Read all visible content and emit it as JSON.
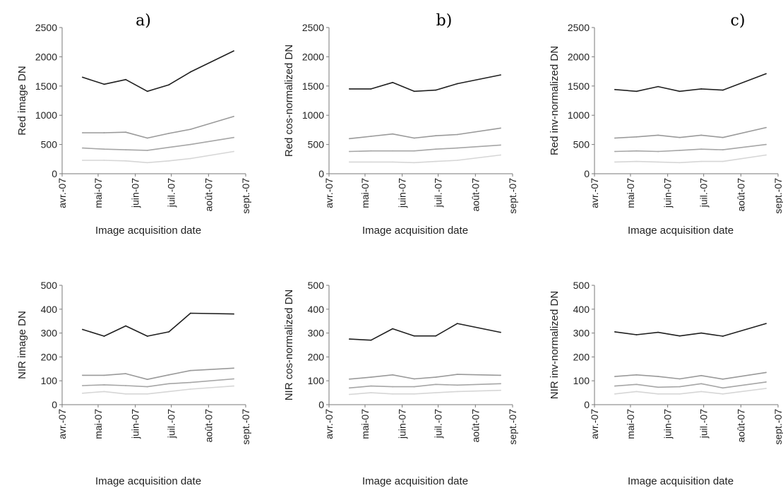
{
  "panel_labels": [
    "a)",
    "b)",
    "c)"
  ],
  "colors": {
    "series": [
      "#1f1f1f",
      "#9a9a9a",
      "#a6a6a6",
      "#d6d6d6"
    ],
    "axis": "#7a7a7a"
  },
  "chart_data": [
    {
      "type": "line",
      "ylabel": "Red image DN",
      "xlabel": "Image acquisition date",
      "categories": [
        "avr.-07",
        "mai-07",
        "juin-07",
        "juil.-07",
        "août-07",
        "sept.-07"
      ],
      "x_dates": [
        "2007-04-01",
        "2007-05-01",
        "2007-06-01",
        "2007-07-01",
        "2007-08-01",
        "2007-09-01"
      ],
      "ylim": [
        0,
        2500
      ],
      "yticks": [
        0,
        500,
        1000,
        1500,
        2000,
        2500
      ],
      "x": [
        "2007-04-18",
        "2007-05-06",
        "2007-05-24",
        "2007-06-11",
        "2007-06-29",
        "2007-07-17",
        "2007-08-22"
      ],
      "series": [
        {
          "values": [
            1650,
            1530,
            1610,
            1410,
            1520,
            1740,
            2100
          ]
        },
        {
          "values": [
            700,
            700,
            710,
            610,
            690,
            760,
            980
          ]
        },
        {
          "values": [
            440,
            420,
            410,
            400,
            450,
            500,
            620
          ]
        },
        {
          "values": [
            230,
            230,
            220,
            190,
            220,
            260,
            380
          ]
        }
      ]
    },
    {
      "type": "line",
      "ylabel": "Red cos-normalized DN",
      "xlabel": "Image acquisition date",
      "categories": [
        "avr.-07",
        "mai-07",
        "juin-07",
        "juil.-07",
        "août-07",
        "sept.-07"
      ],
      "x_dates": [
        "2007-04-01",
        "2007-05-01",
        "2007-06-01",
        "2007-07-01",
        "2007-08-01",
        "2007-09-01"
      ],
      "ylim": [
        0,
        2500
      ],
      "yticks": [
        0,
        500,
        1000,
        1500,
        2000,
        2500
      ],
      "x": [
        "2007-04-18",
        "2007-05-06",
        "2007-05-24",
        "2007-06-11",
        "2007-06-29",
        "2007-07-17",
        "2007-08-22"
      ],
      "series": [
        {
          "values": [
            1450,
            1450,
            1560,
            1410,
            1430,
            1540,
            1690
          ]
        },
        {
          "values": [
            600,
            640,
            680,
            610,
            650,
            670,
            780
          ]
        },
        {
          "values": [
            380,
            390,
            390,
            390,
            420,
            440,
            490
          ]
        },
        {
          "values": [
            200,
            200,
            200,
            190,
            210,
            230,
            320
          ]
        }
      ]
    },
    {
      "type": "line",
      "ylabel": "Red inv-normalized DN",
      "xlabel": "Image acquisition date",
      "categories": [
        "avr.-07",
        "mai-07",
        "juin-07",
        "juil.-07",
        "août-07",
        "sept.-07"
      ],
      "x_dates": [
        "2007-04-01",
        "2007-05-01",
        "2007-06-01",
        "2007-07-01",
        "2007-08-01",
        "2007-09-01"
      ],
      "ylim": [
        0,
        2500
      ],
      "yticks": [
        0,
        500,
        1000,
        1500,
        2000,
        2500
      ],
      "x": [
        "2007-04-18",
        "2007-05-06",
        "2007-05-24",
        "2007-06-11",
        "2007-06-29",
        "2007-07-17",
        "2007-08-22"
      ],
      "series": [
        {
          "values": [
            1440,
            1410,
            1490,
            1410,
            1450,
            1430,
            1710
          ]
        },
        {
          "values": [
            610,
            630,
            660,
            620,
            660,
            620,
            790
          ]
        },
        {
          "values": [
            380,
            390,
            380,
            400,
            420,
            410,
            500
          ]
        },
        {
          "values": [
            200,
            210,
            200,
            190,
            210,
            210,
            320
          ]
        }
      ]
    },
    {
      "type": "line",
      "ylabel": "NIR image DN",
      "xlabel": "Image acquisition date",
      "categories": [
        "avr.-07",
        "mai-07",
        "juin-07",
        "juil.-07",
        "août-07",
        "sept.-07"
      ],
      "x_dates": [
        "2007-04-01",
        "2007-05-01",
        "2007-06-01",
        "2007-07-01",
        "2007-08-01",
        "2007-09-01"
      ],
      "ylim": [
        0,
        500
      ],
      "yticks": [
        0,
        100,
        200,
        300,
        400,
        500
      ],
      "x": [
        "2007-04-18",
        "2007-05-06",
        "2007-05-24",
        "2007-06-11",
        "2007-06-29",
        "2007-07-17",
        "2007-08-22"
      ],
      "series": [
        {
          "values": [
            315,
            287,
            330,
            287,
            305,
            383,
            380
          ]
        },
        {
          "values": [
            123,
            123,
            130,
            106,
            125,
            143,
            153
          ]
        },
        {
          "values": [
            80,
            83,
            80,
            75,
            88,
            93,
            108
          ]
        },
        {
          "values": [
            48,
            55,
            45,
            45,
            55,
            65,
            78
          ]
        }
      ]
    },
    {
      "type": "line",
      "ylabel": "NIR cos-normalized DN",
      "xlabel": "Image acquisition date",
      "categories": [
        "avr.-07",
        "mai-07",
        "juin-07",
        "juil.-07",
        "août-07",
        "sept.-07"
      ],
      "x_dates": [
        "2007-04-01",
        "2007-05-01",
        "2007-06-01",
        "2007-07-01",
        "2007-08-01",
        "2007-09-01"
      ],
      "ylim": [
        0,
        500
      ],
      "yticks": [
        0,
        100,
        200,
        300,
        400,
        500
      ],
      "x": [
        "2007-04-18",
        "2007-05-06",
        "2007-05-24",
        "2007-06-11",
        "2007-06-29",
        "2007-07-17",
        "2007-08-22"
      ],
      "series": [
        {
          "values": [
            275,
            270,
            318,
            288,
            288,
            340,
            303
          ]
        },
        {
          "values": [
            107,
            115,
            125,
            108,
            115,
            127,
            123
          ]
        },
        {
          "values": [
            70,
            78,
            75,
            75,
            85,
            82,
            88
          ]
        },
        {
          "values": [
            43,
            50,
            45,
            45,
            50,
            55,
            60
          ]
        }
      ]
    },
    {
      "type": "line",
      "ylabel": "NIR inv-normalized DN",
      "xlabel": "Image acquisition date",
      "categories": [
        "avr.-07",
        "mai-07",
        "juin-07",
        "juil.-07",
        "août-07",
        "sept.-07"
      ],
      "x_dates": [
        "2007-04-01",
        "2007-05-01",
        "2007-06-01",
        "2007-07-01",
        "2007-08-01",
        "2007-09-01"
      ],
      "ylim": [
        0,
        500
      ],
      "yticks": [
        0,
        100,
        200,
        300,
        400,
        500
      ],
      "x": [
        "2007-04-18",
        "2007-05-06",
        "2007-05-24",
        "2007-06-11",
        "2007-06-29",
        "2007-07-17",
        "2007-08-22"
      ],
      "series": [
        {
          "values": [
            305,
            293,
            303,
            288,
            300,
            287,
            340
          ]
        },
        {
          "values": [
            118,
            125,
            118,
            108,
            122,
            107,
            135
          ]
        },
        {
          "values": [
            78,
            85,
            73,
            75,
            88,
            70,
            95
          ]
        },
        {
          "values": [
            45,
            55,
            45,
            45,
            55,
            45,
            68
          ]
        }
      ]
    }
  ]
}
